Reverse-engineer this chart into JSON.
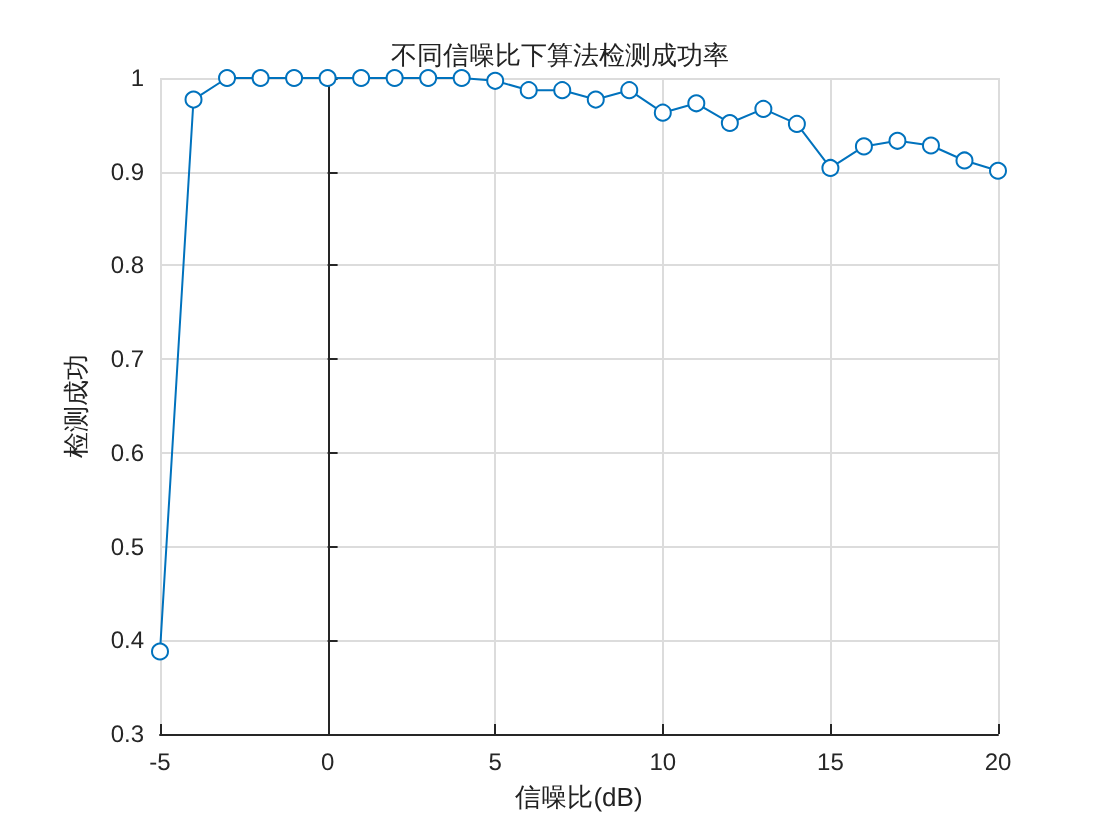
{
  "chart_data": {
    "type": "line",
    "title": "不同信噪比下算法检测成功率",
    "xlabel": "信噪比(dB)",
    "ylabel": "检测成功",
    "x": [
      -5,
      -4,
      -3,
      -2,
      -1,
      0,
      1,
      2,
      3,
      4,
      5,
      6,
      7,
      8,
      9,
      10,
      11,
      12,
      13,
      14,
      15,
      16,
      17,
      18,
      19,
      20
    ],
    "series": [
      {
        "color": "#0072bd",
        "values": [
          0.388,
          0.977,
          1,
          1,
          1,
          1,
          1,
          1,
          1,
          1,
          0.997,
          0.987,
          0.987,
          0.977,
          0.987,
          0.963,
          0.973,
          0.952,
          0.967,
          0.951,
          0.904,
          0.927,
          0.933,
          0.928,
          0.912,
          0.901
        ]
      }
    ],
    "xlim": [
      -5,
      20
    ],
    "xticks": [
      -5,
      0,
      5,
      10,
      15,
      20
    ],
    "ylim": [
      0.3,
      1
    ],
    "yticks": [
      0.3,
      0.4,
      0.5,
      0.6,
      0.7,
      0.8,
      0.9,
      1
    ],
    "grid": true,
    "marker": "circle",
    "line_style": "solid"
  }
}
